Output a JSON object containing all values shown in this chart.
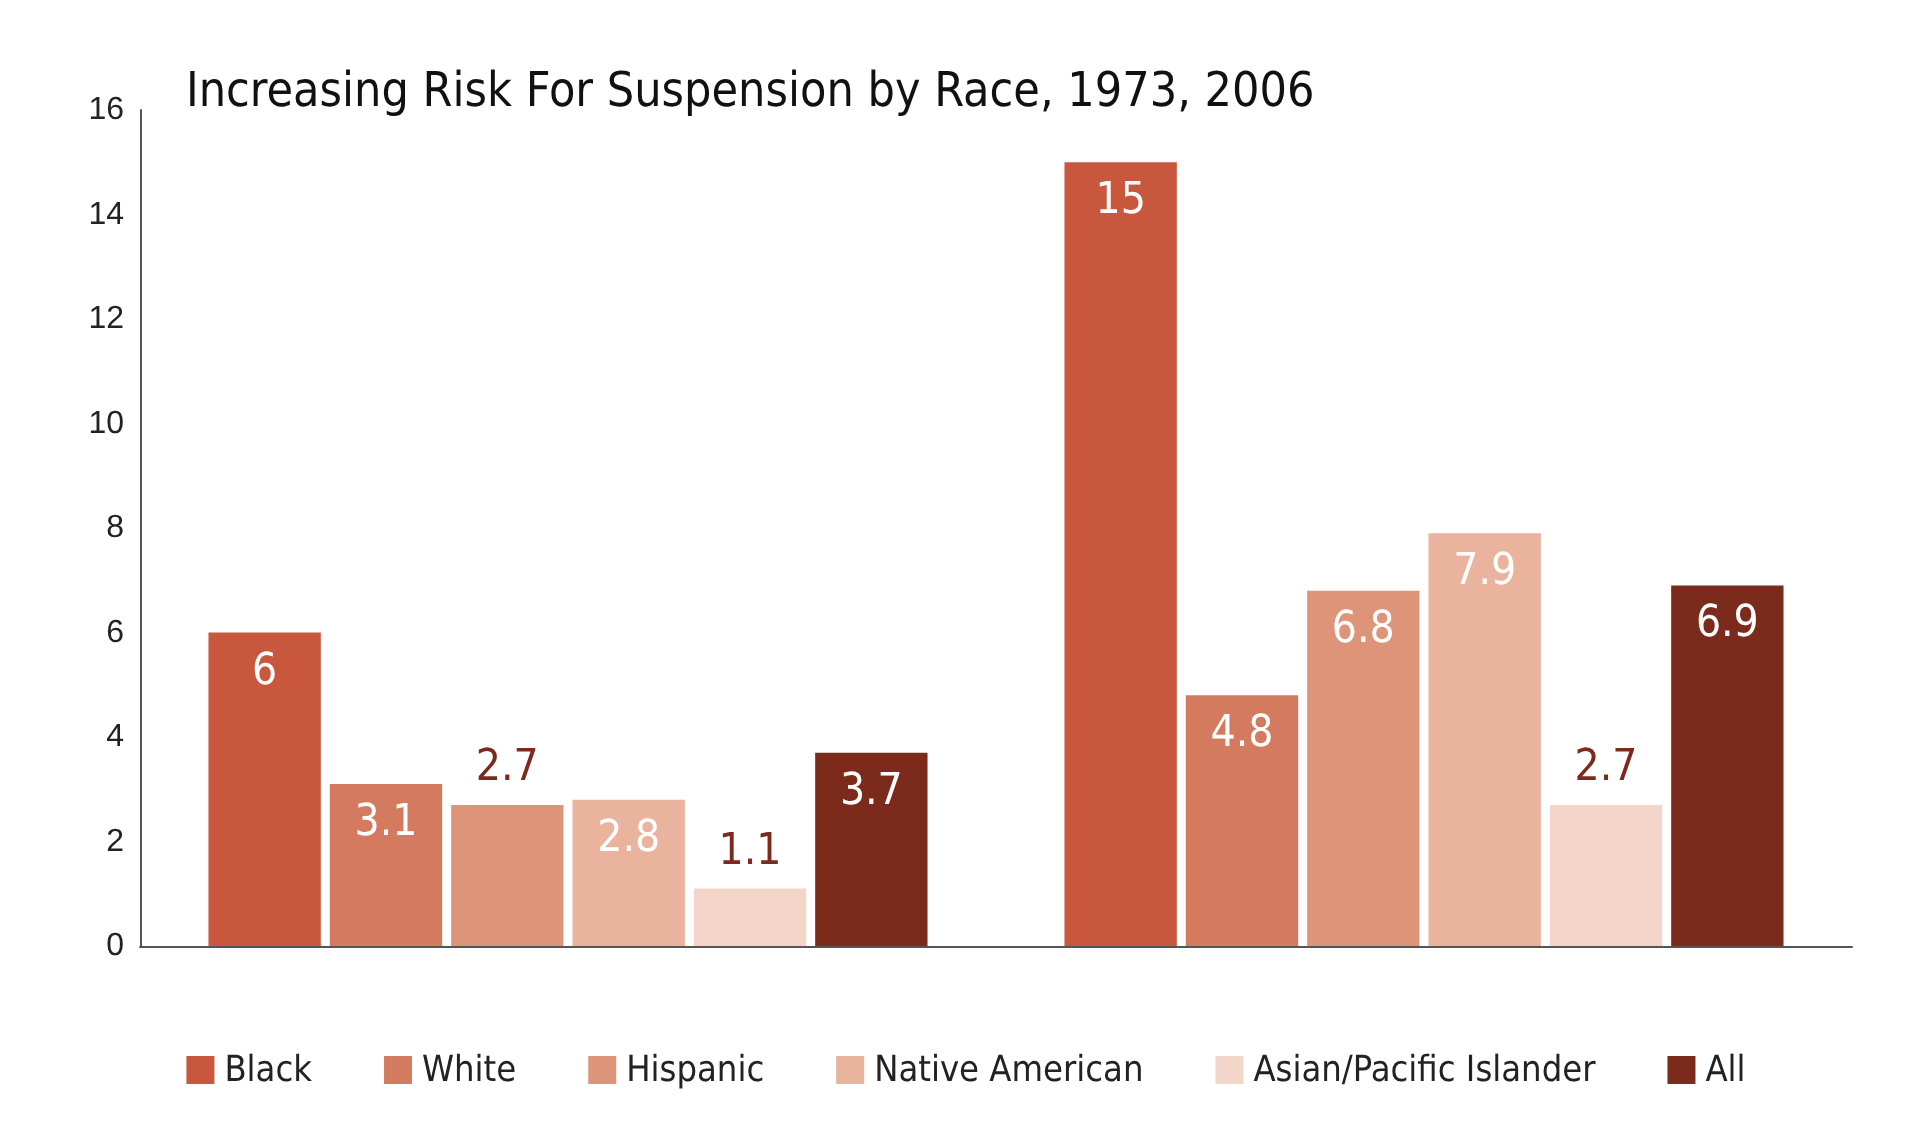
{
  "chart_data": {
    "type": "bar",
    "title": "Increasing Risk For Suspension by Race, 1973, 2006",
    "categories": [
      null,
      null
    ],
    "series": [
      {
        "name": "Black",
        "color": "#c9573d",
        "values": [
          6,
          15
        ]
      },
      {
        "name": "White",
        "color": "#d47b5f",
        "values": [
          3.1,
          4.8
        ]
      },
      {
        "name": "Hispanic",
        "color": "#de9478",
        "values": [
          2.7,
          6.8
        ]
      },
      {
        "name": "Native American",
        "color": "#e9b39d",
        "values": [
          2.8,
          7.9
        ]
      },
      {
        "name": "Asian/Pacific Islander",
        "color": "#f3d6c9",
        "values": [
          1.1,
          2.7
        ]
      },
      {
        "name": "All",
        "color": "#7c2a1b",
        "values": [
          3.7,
          6.9
        ]
      }
    ],
    "ylim": [
      0,
      16
    ],
    "yticks": [
      0,
      2,
      4,
      6,
      8,
      10,
      12,
      14,
      16
    ],
    "grid": false,
    "legend": "bottom",
    "data_labels": true
  }
}
